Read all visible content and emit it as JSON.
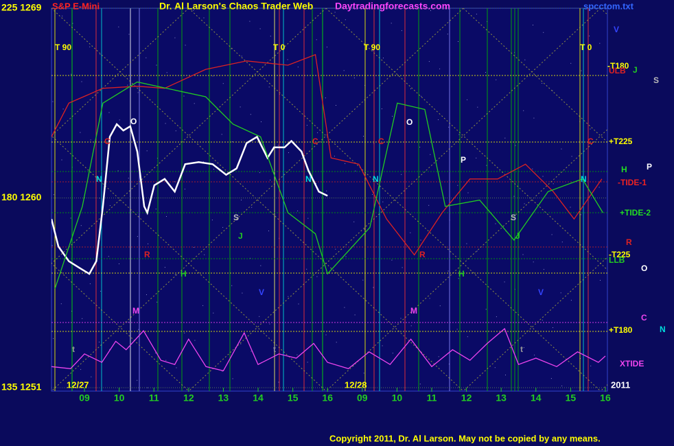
{
  "chart_data": {
    "type": "line",
    "title": "Dr. Al Larson's Chaos Trader Web",
    "instrument": "S&P E-Mini",
    "site": "Daytradingforecasts.com",
    "file": "spcctom.txt",
    "copyright": "Copyright 2011, Dr. Al Larson. May not be copied by any means.",
    "dates": [
      "12/27",
      "12/28",
      "2011"
    ],
    "xlim": [
      8.05,
      24.06
    ],
    "xticks": [
      {
        "value": 9,
        "label": "09"
      },
      10,
      11,
      12,
      13,
      14,
      15,
      16,
      {
        "value": 17,
        "label": "09"
      },
      {
        "value": 18,
        "label": "10"
      },
      {
        "value": 19,
        "label": "11"
      },
      {
        "value": 20,
        "label": "12"
      },
      {
        "value": 21,
        "label": "13"
      },
      {
        "value": 22,
        "label": "14"
      },
      {
        "value": 23,
        "label": "15"
      },
      {
        "value": 24,
        "label": "16"
      }
    ],
    "ylim": [
      1251,
      1269
    ],
    "yticks": [
      {
        "value": 1251,
        "label": "135 1251"
      },
      {
        "value": 1260,
        "label": "180 1260"
      },
      {
        "value": 1269,
        "label": "225 1269"
      }
    ],
    "grid": true,
    "series": [
      {
        "color": "#ffffff",
        "x": [
          8.05,
          8.25,
          8.55,
          8.84,
          9.14,
          9.34,
          9.53,
          9.73,
          9.93,
          10.12,
          10.32,
          10.52,
          10.72,
          10.81,
          11.01,
          11.31,
          11.6,
          11.9,
          12.29,
          12.69,
          13.08,
          13.38,
          13.67,
          13.97,
          14.27,
          14.46,
          14.76,
          14.96,
          15.25,
          15.45,
          15.75,
          16.0
        ],
        "values": [
          1259.0,
          1257.7,
          1257.0,
          1256.7,
          1256.4,
          1257.0,
          1259.6,
          1262.9,
          1263.5,
          1263.2,
          1263.4,
          1262.2,
          1259.6,
          1259.3,
          1260.6,
          1260.9,
          1260.3,
          1261.6,
          1261.7,
          1261.6,
          1261.1,
          1261.4,
          1262.6,
          1262.9,
          1261.9,
          1262.4,
          1262.4,
          1262.7,
          1262.2,
          1261.3,
          1260.3,
          1260.1
        ]
      },
      {
        "color": "#dd2222",
        "x": [
          8.05,
          8.55,
          9.53,
          10.52,
          11.31,
          12.49,
          13.67,
          14.86,
          15.65,
          16.1,
          16.9,
          17.7,
          18.5,
          19.3,
          20.1,
          20.9,
          21.7,
          22.5,
          23.1,
          23.9
        ],
        "values": [
          1262.9,
          1264.5,
          1265.2,
          1265.3,
          1265.2,
          1266.1,
          1266.5,
          1266.3,
          1266.8,
          1261.9,
          1261.6,
          1259.0,
          1257.3,
          1259.3,
          1260.9,
          1260.9,
          1261.6,
          1260.3,
          1259.0,
          1260.9
        ]
      },
      {
        "color": "#22cc22",
        "x": [
          8.15,
          8.94,
          9.53,
          10.52,
          12.49,
          13.28,
          14.07,
          14.86,
          15.65,
          16.0,
          17.22,
          18.01,
          18.8,
          19.39,
          20.38,
          21.37,
          22.35,
          23.34,
          23.93
        ],
        "values": [
          1255.7,
          1259.6,
          1264.5,
          1265.5,
          1264.8,
          1263.5,
          1262.9,
          1259.3,
          1258.3,
          1256.4,
          1258.6,
          1264.5,
          1264.2,
          1259.6,
          1259.9,
          1258.0,
          1260.3,
          1260.9,
          1259.3
        ]
      },
      {
        "name": "XTIDE",
        "color": "#ee44ee",
        "x": [
          8.05,
          8.6,
          9.0,
          9.5,
          9.9,
          10.2,
          10.7,
          11.2,
          11.6,
          12.0,
          12.5,
          13.0,
          13.6,
          14.0,
          14.6,
          15.1,
          15.6,
          16.0,
          16.6,
          17.2,
          17.8,
          18.4,
          19.0,
          19.6,
          20.1,
          20.6,
          21.1,
          21.5,
          22.0,
          22.6,
          23.2,
          23.8,
          24.0
        ],
        "values": [
          1252.0,
          1251.9,
          1252.6,
          1252.2,
          1253.2,
          1252.8,
          1253.7,
          1252.3,
          1252.1,
          1253.3,
          1252.0,
          1251.8,
          1253.6,
          1252.1,
          1252.6,
          1252.4,
          1253.1,
          1252.2,
          1251.9,
          1252.7,
          1252.1,
          1253.3,
          1252.0,
          1252.8,
          1252.3,
          1253.1,
          1253.8,
          1252.1,
          1252.4,
          1252.0,
          1252.7,
          1252.2,
          1252.5
        ]
      }
    ],
    "annotations": [
      {
        "text": "T  90",
        "color": "#ffff00"
      },
      {
        "text": "T  0",
        "color": "#ffff00"
      },
      {
        "text": "T  90",
        "color": "#ffff00"
      },
      {
        "text": "T  0",
        "color": "#ffff00"
      },
      {
        "text": "-T180",
        "color": "#ffff00"
      },
      {
        "text": "ULB",
        "color": "#dd2222"
      },
      {
        "text": "J",
        "color": "#22cc22"
      },
      {
        "text": "S",
        "color": "#bbbbbb"
      },
      {
        "text": "+T225",
        "color": "#ffff00"
      },
      {
        "text": "H",
        "color": "#22dd22"
      },
      {
        "text": "P",
        "color": "#ffffff"
      },
      {
        "text": "-TIDE-1",
        "color": "#ee2222"
      },
      {
        "text": "+TIDE-2",
        "color": "#22dd22"
      },
      {
        "text": "R",
        "color": "#dd2222"
      },
      {
        "text": "-T225",
        "color": "#ffff00"
      },
      {
        "text": "LLB",
        "color": "#22cc22"
      },
      {
        "text": "O",
        "color": "#ffffff"
      },
      {
        "text": "+T180",
        "color": "#ffff00"
      },
      {
        "text": "C",
        "color": "#ee44ee"
      },
      {
        "text": "N",
        "color": "#00dddd"
      },
      {
        "text": "O",
        "color": "#ffffff"
      },
      {
        "text": "C",
        "color": "#dd2222"
      },
      {
        "text": "N",
        "color": "#00dddd"
      },
      {
        "text": "R",
        "color": "#dd2222"
      },
      {
        "text": "H",
        "color": "#22cc22"
      },
      {
        "text": "M",
        "color": "#ee44ee"
      },
      {
        "text": "S",
        "color": "#bbbbbb"
      },
      {
        "text": "J",
        "color": "#22cc22"
      },
      {
        "text": "V",
        "color": "#3344ff"
      },
      {
        "text": "t",
        "color": "#999999"
      },
      {
        "text": "t",
        "color": "#999999"
      },
      {
        "text": "C",
        "color": "#dd2222"
      },
      {
        "text": "N",
        "color": "#00dddd"
      },
      {
        "text": "O",
        "color": "#ffffff"
      },
      {
        "text": "C",
        "color": "#dd2222"
      },
      {
        "text": "N",
        "color": "#00dddd"
      },
      {
        "text": "P",
        "color": "#ffffff"
      },
      {
        "text": "R",
        "color": "#dd2222"
      },
      {
        "text": "H",
        "color": "#22cc22"
      },
      {
        "text": "M",
        "color": "#ee44ee"
      },
      {
        "text": "S",
        "color": "#bbbbbb"
      },
      {
        "text": "J",
        "color": "#22cc22"
      },
      {
        "text": "V",
        "color": "#3344ff"
      },
      {
        "text": "t",
        "color": "#999999"
      },
      {
        "text": "C",
        "color": "#dd2222"
      },
      {
        "text": "N",
        "color": "#00dddd"
      },
      {
        "text": "V",
        "color": "#3344ff"
      }
    ]
  }
}
